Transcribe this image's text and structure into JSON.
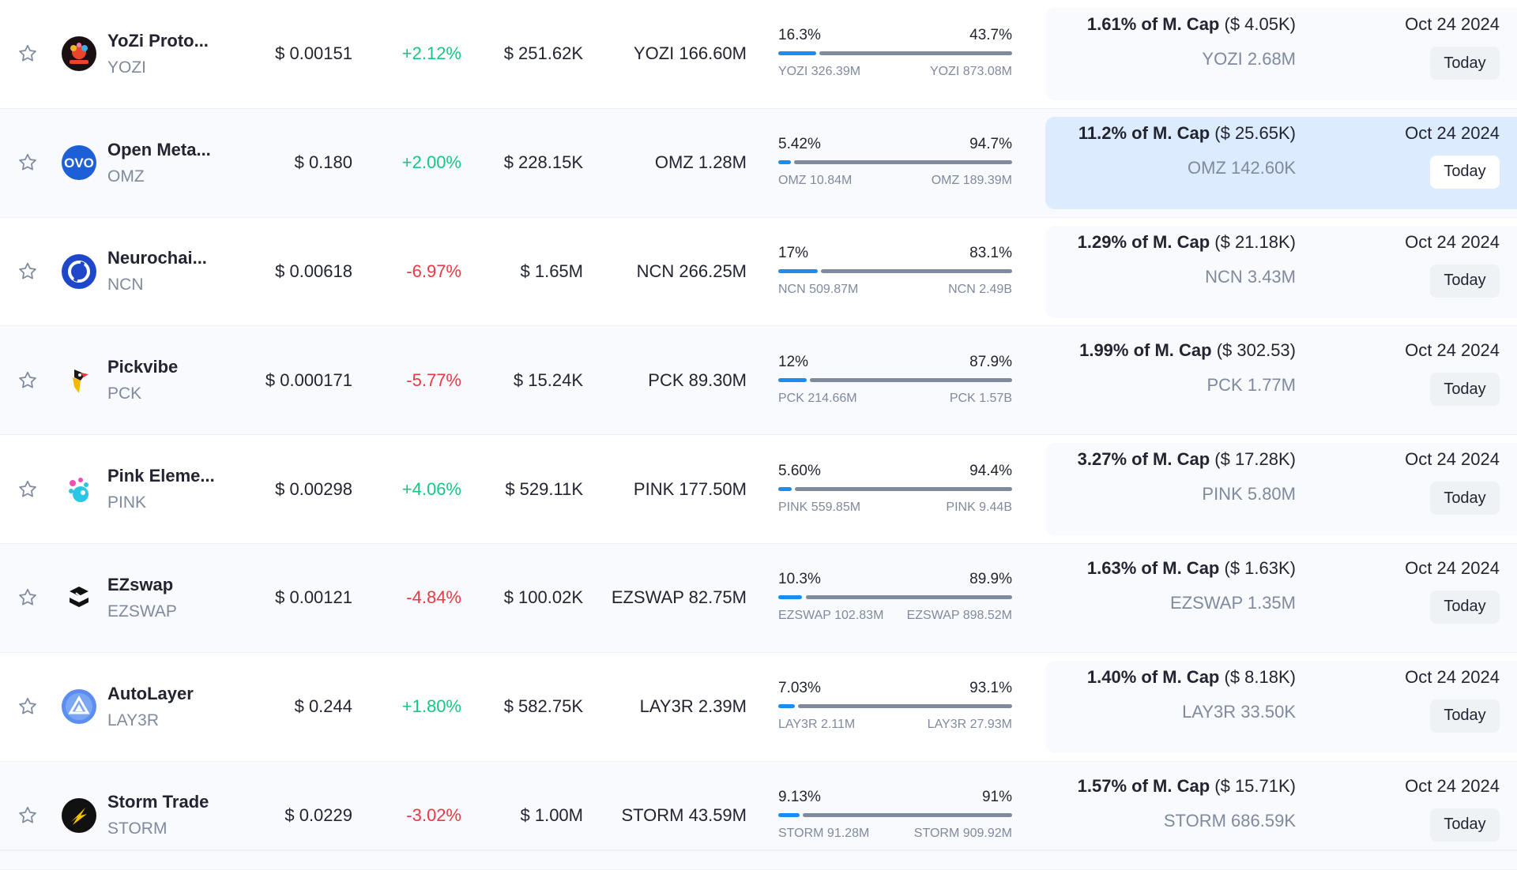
{
  "colors": {
    "positive": "#16c784",
    "negative": "#ea3943",
    "bar_left": "#1b8cf0",
    "bar_right": "#808a9d",
    "highlight": "#dcebfd"
  },
  "rows": [
    {
      "name": "YoZi Proto...",
      "symbol": "YOZI",
      "logo_icon": "yozi-logo-icon",
      "price": "$ 0.00151",
      "change": "+2.12%",
      "direction": "up",
      "volume": "$ 251.62K",
      "supply": "YOZI 166.60M",
      "pct_left": "16.3%",
      "pct_right": "43.7%",
      "fill_left": 0.163,
      "fill_right": 0.437,
      "amt_left": "YOZI 326.39M",
      "amt_right": "YOZI 873.08M",
      "unlock_pct": "1.61% of M. Cap",
      "unlock_value": "($ 4.05K)",
      "unlock_amount": "YOZI 2.68M",
      "date": "Oct 24 2024",
      "today_label": "Today"
    },
    {
      "name": "Open Meta...",
      "symbol": "OMZ",
      "logo_icon": "omz-logo-icon",
      "price": "$ 0.180",
      "change": "+2.00%",
      "direction": "up",
      "volume": "$ 228.15K",
      "supply": "OMZ 1.28M",
      "pct_left": "5.42%",
      "pct_right": "94.7%",
      "fill_left": 0.0542,
      "fill_right": 0.947,
      "amt_left": "OMZ 10.84M",
      "amt_right": "OMZ 189.39M",
      "unlock_pct": "11.2% of M. Cap",
      "unlock_value": "($ 25.65K)",
      "unlock_amount": "OMZ 142.60K",
      "date": "Oct 24 2024",
      "today_label": "Today",
      "highlighted": true
    },
    {
      "name": "Neurochai...",
      "symbol": "NCN",
      "logo_icon": "ncn-logo-icon",
      "price": "$ 0.00618",
      "change": "-6.97%",
      "direction": "down",
      "volume": "$ 1.65M",
      "supply": "NCN 266.25M",
      "pct_left": "17%",
      "pct_right": "83.1%",
      "fill_left": 0.17,
      "fill_right": 0.831,
      "amt_left": "NCN 509.87M",
      "amt_right": "NCN 2.49B",
      "unlock_pct": "1.29% of M. Cap",
      "unlock_value": "($ 21.18K)",
      "unlock_amount": "NCN 3.43M",
      "date": "Oct 24 2024",
      "today_label": "Today"
    },
    {
      "name": "Pickvibe",
      "symbol": "PCK",
      "logo_icon": "pck-logo-icon",
      "price": "$ 0.000171",
      "change": "-5.77%",
      "direction": "down",
      "volume": "$ 15.24K",
      "supply": "PCK 89.30M",
      "pct_left": "12%",
      "pct_right": "87.9%",
      "fill_left": 0.12,
      "fill_right": 0.879,
      "amt_left": "PCK 214.66M",
      "amt_right": "PCK 1.57B",
      "unlock_pct": "1.99% of M. Cap",
      "unlock_value": "($ 302.53)",
      "unlock_amount": "PCK 1.77M",
      "date": "Oct 24 2024",
      "today_label": "Today"
    },
    {
      "name": "Pink Eleme...",
      "symbol": "PINK",
      "logo_icon": "pink-logo-icon",
      "price": "$ 0.00298",
      "change": "+4.06%",
      "direction": "up",
      "volume": "$ 529.11K",
      "supply": "PINK 177.50M",
      "pct_left": "5.60%",
      "pct_right": "94.4%",
      "fill_left": 0.056,
      "fill_right": 0.944,
      "amt_left": "PINK 559.85M",
      "amt_right": "PINK 9.44B",
      "unlock_pct": "3.27% of M. Cap",
      "unlock_value": "($ 17.28K)",
      "unlock_amount": "PINK 5.80M",
      "date": "Oct 24 2024",
      "today_label": "Today"
    },
    {
      "name": "EZswap",
      "symbol": "EZSWAP",
      "logo_icon": "ezswap-logo-icon",
      "price": "$ 0.00121",
      "change": "-4.84%",
      "direction": "down",
      "volume": "$ 100.02K",
      "supply": "EZSWAP 82.75M",
      "pct_left": "10.3%",
      "pct_right": "89.9%",
      "fill_left": 0.103,
      "fill_right": 0.899,
      "amt_left": "EZSWAP 102.83M",
      "amt_right": "EZSWAP 898.52M",
      "unlock_pct": "1.63% of M. Cap",
      "unlock_value": "($ 1.63K)",
      "unlock_amount": "EZSWAP 1.35M",
      "date": "Oct 24 2024",
      "today_label": "Today"
    },
    {
      "name": "AutoLayer",
      "symbol": "LAY3R",
      "logo_icon": "autolayer-logo-icon",
      "price": "$ 0.244",
      "change": "+1.80%",
      "direction": "up",
      "volume": "$ 582.75K",
      "supply": "LAY3R 2.39M",
      "pct_left": "7.03%",
      "pct_right": "93.1%",
      "fill_left": 0.0703,
      "fill_right": 0.931,
      "amt_left": "LAY3R 2.11M",
      "amt_right": "LAY3R 27.93M",
      "unlock_pct": "1.40% of M. Cap",
      "unlock_value": "($ 8.18K)",
      "unlock_amount": "LAY3R 33.50K",
      "date": "Oct 24 2024",
      "today_label": "Today"
    },
    {
      "name": "Storm Trade",
      "symbol": "STORM",
      "logo_icon": "storm-logo-icon",
      "price": "$ 0.0229",
      "change": "-3.02%",
      "direction": "down",
      "volume": "$ 1.00M",
      "supply": "STORM 43.59M",
      "pct_left": "9.13%",
      "pct_right": "91%",
      "fill_left": 0.0913,
      "fill_right": 0.91,
      "amt_left": "STORM 91.28M",
      "amt_right": "STORM 909.92M",
      "unlock_pct": "1.57% of M. Cap",
      "unlock_value": "($ 15.71K)",
      "unlock_amount": "STORM 686.59K",
      "date": "Oct 24 2024",
      "today_label": "Today"
    }
  ]
}
